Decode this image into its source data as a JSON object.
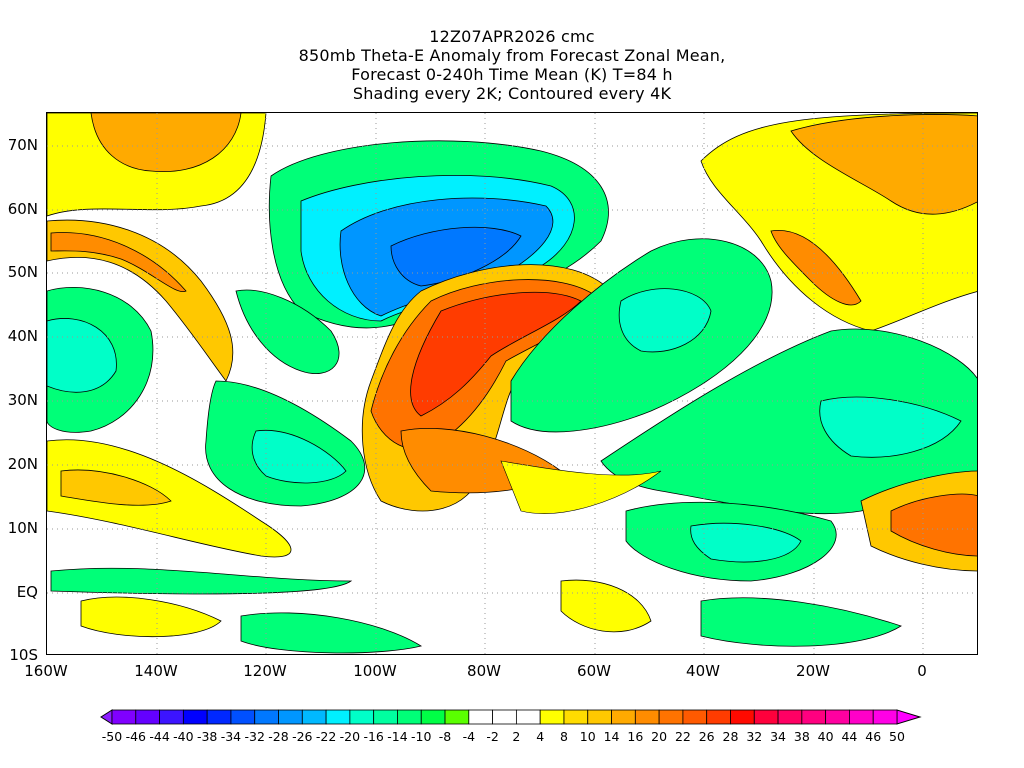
{
  "title": {
    "line1": "12Z07APR2026 cmc",
    "line2": "850mb Theta-E Anomaly from Forecast Zonal Mean,",
    "line3": "Forecast 0-240h Time Mean (K) T=84 h",
    "line4": "Shading every 2K; Contoured every 4K"
  },
  "axes": {
    "lat_labels": [
      "70N",
      "60N",
      "50N",
      "40N",
      "30N",
      "20N",
      "10N",
      "EQ",
      "10S"
    ],
    "lon_labels": [
      "160W",
      "140W",
      "120W",
      "100W",
      "80W",
      "60W",
      "40W",
      "20W",
      "0"
    ]
  },
  "colorbar": {
    "labels": [
      "-50",
      "-46",
      "-44",
      "-40",
      "-38",
      "-34",
      "-32",
      "-28",
      "-26",
      "-22",
      "-20",
      "-16",
      "-14",
      "-10",
      "-8",
      "-4",
      "-2",
      "2",
      "4",
      "8",
      "10",
      "14",
      "16",
      "20",
      "22",
      "26",
      "28",
      "32",
      "34",
      "38",
      "40",
      "44",
      "46",
      "50"
    ],
    "colors": [
      "#8000ff",
      "#6400ff",
      "#3c14ff",
      "#0000ff",
      "#0028ff",
      "#0050ff",
      "#0078ff",
      "#0096ff",
      "#00b9ff",
      "#00f0ff",
      "#00ffc8",
      "#00ffa0",
      "#00ff78",
      "#00ff46",
      "#5aff00",
      "#ffffff",
      "#ffffff",
      "#ffffff",
      "#ffff00",
      "#ffdc00",
      "#ffc800",
      "#ffaa00",
      "#ff8c00",
      "#ff7300",
      "#ff5a00",
      "#ff3c00",
      "#ff0a00",
      "#ff003c",
      "#ff0064",
      "#ff0080",
      "#ff00a0",
      "#ff00c8",
      "#ff00e6"
    ],
    "under_color": "#8c1eff",
    "over_color": "#ff00ff"
  }
}
